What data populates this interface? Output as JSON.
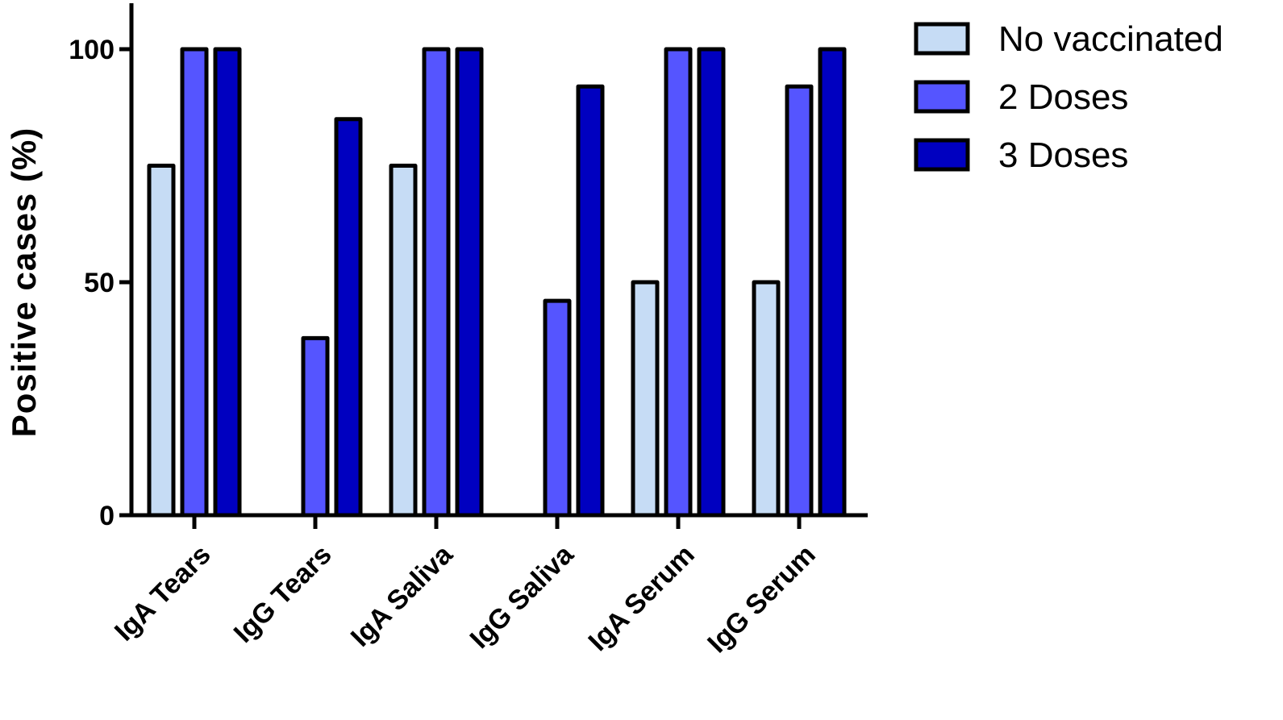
{
  "chart_data": {
    "type": "bar",
    "title": "",
    "xlabel": "",
    "ylabel": "Positive cases (%)",
    "ylim": [
      0,
      110
    ],
    "yticks": [
      "0",
      "50",
      "100"
    ],
    "grid": false,
    "legend_position": "top-right",
    "categories": [
      "IgA Tears",
      "IgG Tears",
      "IgA Saliva",
      "IgG Saliva",
      "IgA Serum",
      "IgG Serum"
    ],
    "series": [
      {
        "name": "No vaccinated",
        "color": "#c6dcf5",
        "values": [
          75,
          0,
          75,
          0,
          50,
          50
        ]
      },
      {
        "name": "2 Doses",
        "color": "#5555ff",
        "values": [
          100,
          38,
          100,
          46,
          100,
          92
        ]
      },
      {
        "name": "3 Doses",
        "color": "#0000c0",
        "values": [
          100,
          85,
          100,
          92,
          100,
          100
        ]
      }
    ]
  }
}
